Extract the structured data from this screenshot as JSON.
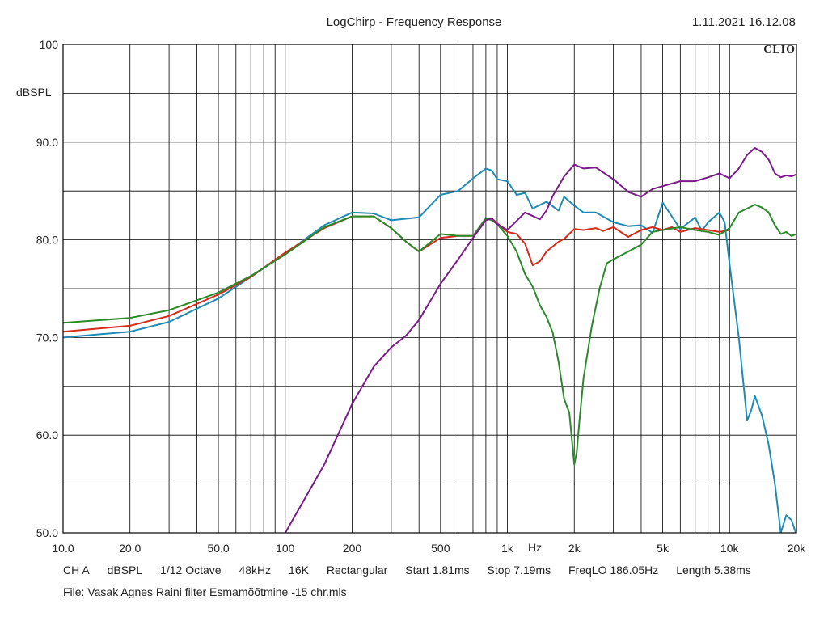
{
  "header": {
    "title": "LogChirp - Frequency Response",
    "datetime": "1.11.2021 16.12.08",
    "brand": "CLIO"
  },
  "footer": {
    "channel": "CH A",
    "unit": "dBSPL",
    "smoothing": "1/12 Octave",
    "sample_rate": "48kHz",
    "fft_size": "16K",
    "window": "Rectangular",
    "start": "Start 1.81ms",
    "stop": "Stop 7.19ms",
    "freqlo": "FreqLO 186.05Hz",
    "length": "Length 5.38ms",
    "file": "File: Vasak Agnes Raini filter Esmamõõtmine -15 chr.mls"
  },
  "chart_data": {
    "type": "line",
    "title": "LogChirp - Frequency Response",
    "xlabel": "Hz",
    "ylabel": "dBSPL",
    "x_scale": "log",
    "xlim": [
      10,
      20000
    ],
    "ylim": [
      50,
      100
    ],
    "grid": true,
    "x_ticks": [
      {
        "value": 10,
        "label": "10.0"
      },
      {
        "value": 20,
        "label": "20.0"
      },
      {
        "value": 50,
        "label": "50.0"
      },
      {
        "value": 100,
        "label": "100"
      },
      {
        "value": 200,
        "label": "200"
      },
      {
        "value": 500,
        "label": "500"
      },
      {
        "value": 1000,
        "label": "1k"
      },
      {
        "value": 2000,
        "label": "2k"
      },
      {
        "value": 5000,
        "label": "5k"
      },
      {
        "value": 10000,
        "label": "10k"
      },
      {
        "value": 20000,
        "label": "20k"
      }
    ],
    "y_ticks": [
      {
        "value": 100,
        "label": "100"
      },
      {
        "value": 90,
        "label": "90.0"
      },
      {
        "value": 80,
        "label": "80.0"
      },
      {
        "value": 70,
        "label": "70.0"
      },
      {
        "value": 60,
        "label": "60.0"
      },
      {
        "value": 50,
        "label": "50.0"
      }
    ],
    "series": [
      {
        "color": "#1f8bb5",
        "x": [
          10,
          20,
          30,
          50,
          70,
          100,
          150,
          200,
          250,
          300,
          400,
          500,
          600,
          700,
          800,
          850,
          900,
          1000,
          1100,
          1200,
          1300,
          1500,
          1700,
          1800,
          2000,
          2200,
          2500,
          3000,
          3500,
          4000,
          4500,
          5000,
          5500,
          6000,
          7000,
          7500,
          8000,
          9000,
          9500,
          10000,
          11000,
          12000,
          12500,
          13000,
          14000,
          15000,
          16000,
          17000,
          18000,
          19000,
          20000
        ],
        "y": [
          70.0,
          70.6,
          71.6,
          74.0,
          76.2,
          78.6,
          81.5,
          82.8,
          82.7,
          82.0,
          82.3,
          84.6,
          85.0,
          86.3,
          87.3,
          87.1,
          86.2,
          86.0,
          84.6,
          84.8,
          83.2,
          83.9,
          83.0,
          84.4,
          83.5,
          82.8,
          82.8,
          81.8,
          81.4,
          81.5,
          80.7,
          83.8,
          82.4,
          81.1,
          82.3,
          80.9,
          81.8,
          82.8,
          81.8,
          77.5,
          70.0,
          61.5,
          62.5,
          64.0,
          62.0,
          59.0,
          55.0,
          50.0,
          51.8,
          51.3,
          49.8
        ]
      },
      {
        "color": "#d62a1a",
        "x": [
          10,
          20,
          30,
          50,
          70,
          100,
          150,
          200,
          250,
          300,
          350,
          400,
          500,
          600,
          700,
          800,
          850,
          900,
          1000,
          1100,
          1200,
          1300,
          1400,
          1500,
          1700,
          1800,
          2000,
          2200,
          2500,
          2700,
          3000,
          3500,
          4000,
          4500,
          5000,
          5500,
          6000,
          7000,
          8000,
          9000,
          10000
        ],
        "y": [
          70.6,
          71.2,
          72.2,
          74.4,
          76.2,
          78.7,
          81.2,
          82.4,
          82.4,
          81.2,
          79.8,
          78.8,
          80.2,
          80.4,
          80.4,
          82.2,
          82.2,
          81.7,
          80.8,
          80.6,
          79.6,
          77.4,
          77.8,
          78.8,
          79.8,
          80.1,
          81.1,
          81.0,
          81.2,
          80.9,
          81.3,
          80.3,
          81.0,
          81.3,
          81.0,
          81.3,
          80.8,
          81.2,
          81.0,
          80.8,
          81.0
        ]
      },
      {
        "color": "#2a8a2a",
        "x": [
          10,
          20,
          30,
          50,
          70,
          100,
          150,
          200,
          250,
          300,
          350,
          400,
          500,
          600,
          700,
          800,
          850,
          900,
          1000,
          1100,
          1200,
          1300,
          1400,
          1500,
          1600,
          1700,
          1800,
          1900,
          2000,
          2050,
          2100,
          2200,
          2400,
          2600,
          2800,
          3000,
          3500,
          4000,
          4500,
          5000,
          6000,
          7000,
          8000,
          9000,
          10000,
          11000,
          12000,
          13000,
          14000,
          15000,
          16000,
          17000,
          18000,
          19000,
          20000
        ],
        "y": [
          71.5,
          72.0,
          72.8,
          74.6,
          76.3,
          78.5,
          81.3,
          82.4,
          82.4,
          81.2,
          79.8,
          78.8,
          80.6,
          80.4,
          80.4,
          82.2,
          82.0,
          81.6,
          80.4,
          78.8,
          76.5,
          75.2,
          73.3,
          72.1,
          70.5,
          67.5,
          63.7,
          62.3,
          57.0,
          58.2,
          61.0,
          65.8,
          71.2,
          75.0,
          77.6,
          78.0,
          78.8,
          79.5,
          80.8,
          81.0,
          81.3,
          81.0,
          80.8,
          80.5,
          81.2,
          82.8,
          83.2,
          83.6,
          83.3,
          82.8,
          81.5,
          80.6,
          80.8,
          80.4,
          80.6
        ]
      },
      {
        "color": "#7b1a8a",
        "x": [
          100,
          150,
          200,
          250,
          300,
          350,
          400,
          500,
          600,
          700,
          800,
          850,
          900,
          1000,
          1200,
          1400,
          1500,
          1600,
          1800,
          2000,
          2200,
          2500,
          3000,
          3500,
          4000,
          4500,
          5000,
          6000,
          7000,
          8000,
          9000,
          10000,
          11000,
          12000,
          13000,
          14000,
          15000,
          16000,
          17000,
          18000,
          19000,
          20000
        ],
        "y": [
          50.0,
          57.0,
          63.2,
          67.0,
          69.0,
          70.2,
          71.8,
          75.5,
          78.0,
          80.2,
          82.0,
          82.2,
          81.6,
          81.0,
          82.8,
          82.1,
          83.0,
          84.5,
          86.5,
          87.7,
          87.3,
          87.4,
          86.2,
          84.9,
          84.4,
          85.2,
          85.5,
          86.0,
          86.0,
          86.4,
          86.8,
          86.3,
          87.3,
          88.7,
          89.4,
          89.0,
          88.2,
          86.8,
          86.4,
          86.6,
          86.5,
          86.7
        ]
      }
    ]
  }
}
